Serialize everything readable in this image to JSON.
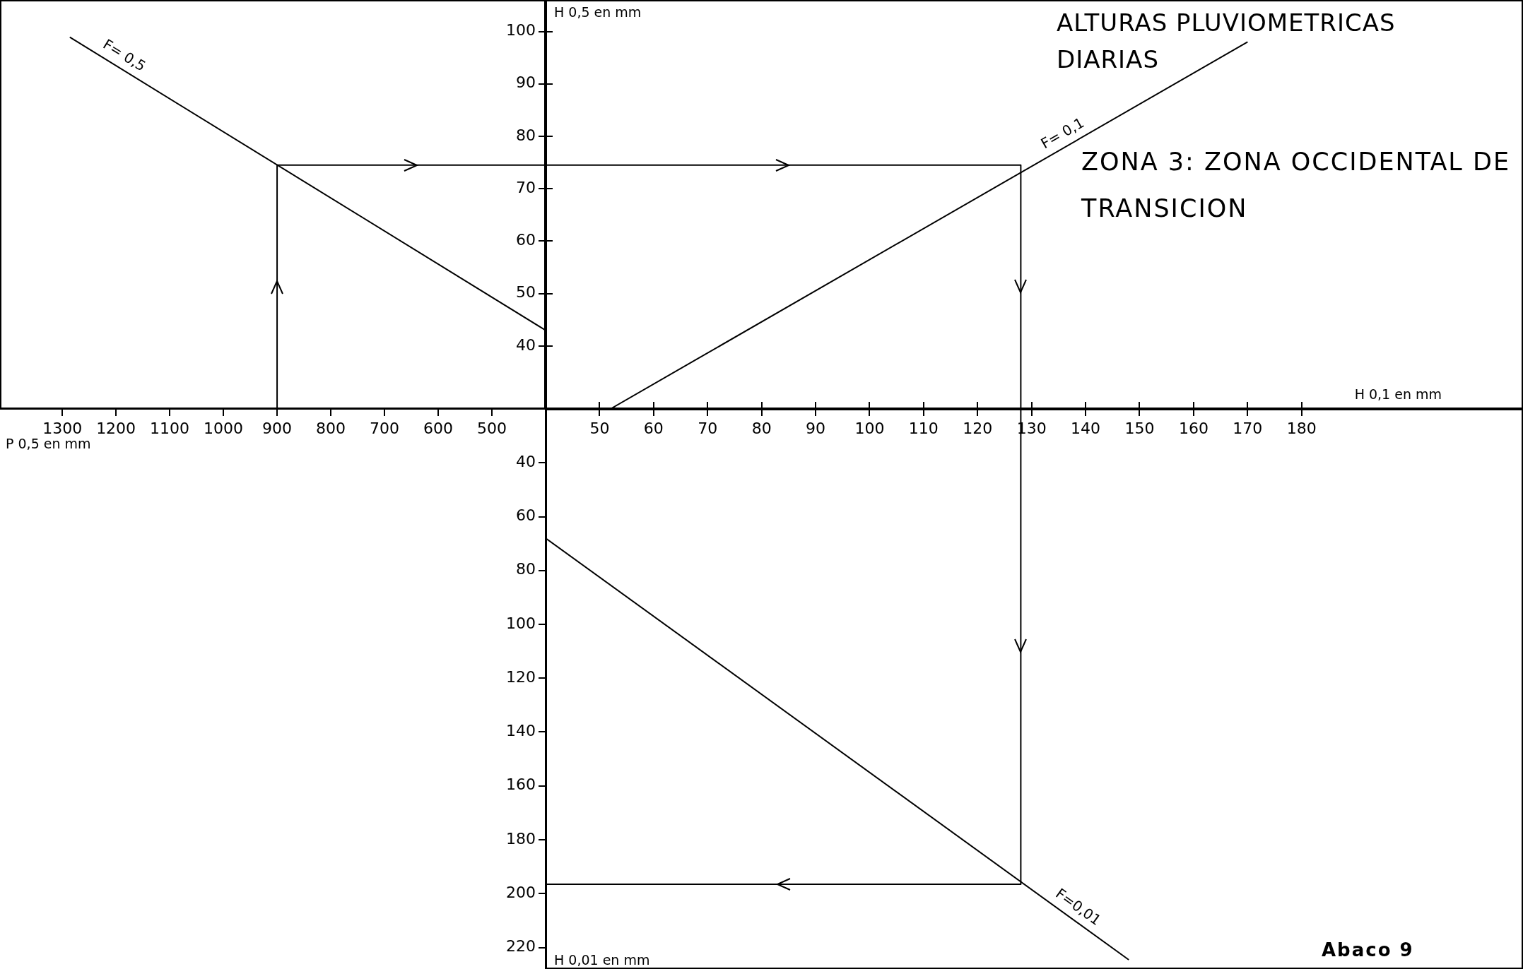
{
  "chart_data": [
    {
      "type": "line",
      "xlabel": "P 0,5 en mm",
      "xlim": [
        1416,
        400
      ],
      "xticks": [
        1300,
        1200,
        1100,
        1000,
        900,
        800,
        700,
        600,
        500
      ],
      "ylim": [
        28,
        106
      ],
      "yticks": [
        40,
        50,
        60,
        70,
        80,
        90,
        100
      ],
      "tick_labels": "x",
      "series": [
        {
          "name": "F= 0,5",
          "color": "#000000",
          "x": [
            1286,
            400
          ],
          "values": [
            98.9,
            43
          ]
        },
        {
          "color": "#000000",
          "x": [
            900,
            900,
            400
          ],
          "values": [
            28,
            74.5,
            74.5
          ]
        }
      ]
    },
    {
      "type": "line",
      "title": "ALTURAS PLUVIOMETRICAS DIARIAS",
      "subtitle": "ZONA 3: ZONA OCCIDENTAL DE TRANSICION",
      "xlabel": "H 0,1 en mm",
      "ylabel": "H 0,5 en mm",
      "xlim": [
        40,
        221
      ],
      "xticks": [
        50,
        60,
        70,
        80,
        90,
        100,
        110,
        120,
        130,
        140,
        150,
        160,
        170,
        180
      ],
      "ylim": [
        28,
        106
      ],
      "yticks": [
        40,
        50,
        60,
        70,
        80,
        90,
        100
      ],
      "series": [
        {
          "name": "F= 0,1",
          "color": "#000000",
          "x": [
            52,
            170
          ],
          "values": [
            28,
            98
          ]
        },
        {
          "color": "#000000",
          "x": [
            40,
            128,
            128
          ],
          "values": [
            74.5,
            74.5,
            28
          ]
        }
      ]
    },
    {
      "type": "line",
      "ylabel": "H 0,01 en mm",
      "xlim": [
        40,
        221
      ],
      "xticks": [
        50,
        60,
        70,
        80,
        90,
        100,
        110,
        120,
        130,
        140,
        150,
        160,
        170,
        180
      ],
      "ylim": [
        228,
        20
      ],
      "yticks": [
        40,
        60,
        80,
        100,
        120,
        140,
        160,
        180,
        200,
        220
      ],
      "tick_labels": "y",
      "annotations": [
        "Abaco 9"
      ],
      "series": [
        {
          "name": "F=0,01",
          "color": "#000000",
          "x": [
            40,
            148
          ],
          "values": [
            68,
            224.6
          ]
        },
        {
          "color": "#000000",
          "x": [
            128,
            128,
            40
          ],
          "values": [
            20,
            196.5,
            196.5
          ]
        }
      ]
    }
  ]
}
